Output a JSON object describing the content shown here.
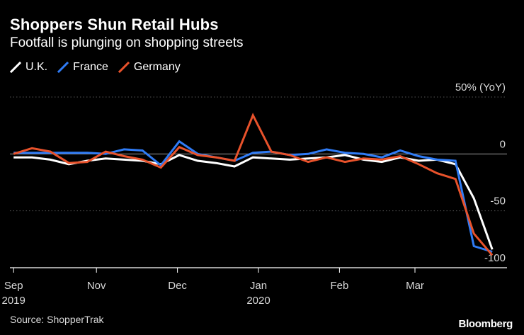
{
  "header": {
    "title": "Shoppers Shun Retail Hubs",
    "subtitle": "Footfall is plunging on shopping streets"
  },
  "footer": {
    "source": "Source: ShopperTrak",
    "logo": "Bloomberg"
  },
  "chart_data": {
    "type": "line",
    "title": "Shoppers Shun Retail Hubs",
    "subtitle": "Footfall is plunging on shopping streets",
    "xlabel": "",
    "ylabel": "50% (YoY)",
    "ylim": [
      -100,
      50
    ],
    "y_ticks": [
      {
        "value": 50,
        "label": "50% (YoY)"
      },
      {
        "value": 0,
        "label": "0"
      },
      {
        "value": -50,
        "label": "-50"
      },
      {
        "value": -100,
        "label": "-100"
      }
    ],
    "x_ticks": [
      {
        "index": 0,
        "line1": "Sep",
        "line2": "2019"
      },
      {
        "index": 4.5,
        "line1": "Nov",
        "line2": ""
      },
      {
        "index": 8.9,
        "line1": "Dec",
        "line2": ""
      },
      {
        "index": 13.3,
        "line1": "Jan",
        "line2": "2020"
      },
      {
        "index": 17.7,
        "line1": "Feb",
        "line2": ""
      },
      {
        "index": 21.8,
        "line1": "Mar",
        "line2": ""
      }
    ],
    "x_range": [
      -0.2,
      26.8
    ],
    "series": [
      {
        "name": "U.K.",
        "color": "#ffffff",
        "values": [
          -3,
          -3,
          -5,
          -9,
          -6,
          -4,
          -5,
          -6,
          -9,
          -1,
          -6,
          -8,
          -11,
          -3,
          -4,
          -5,
          -4,
          -3,
          -1,
          -5,
          -7,
          -3,
          -6,
          -5,
          -9,
          -39,
          -84
        ]
      },
      {
        "name": "France",
        "color": "#2f7bf5",
        "values": [
          1,
          1,
          1,
          1,
          1,
          0,
          4,
          3,
          -10,
          11,
          0,
          -3,
          -6,
          1,
          2,
          -1,
          0,
          4,
          1,
          0,
          -3,
          3,
          -2,
          -5,
          -6,
          -81,
          -86
        ]
      },
      {
        "name": "Germany",
        "color": "#e8522b",
        "values": [
          0,
          5,
          2,
          -8,
          -7,
          2,
          -2,
          -5,
          -12,
          6,
          -1,
          -3,
          -6,
          34,
          2,
          -1,
          -7,
          -3,
          -7,
          -4,
          -5,
          -2,
          -9,
          -17,
          -22,
          -70,
          -89
        ]
      }
    ],
    "legend": [
      "U.K.",
      "France",
      "Germany"
    ],
    "legend_position": "top-left",
    "grid": true
  }
}
